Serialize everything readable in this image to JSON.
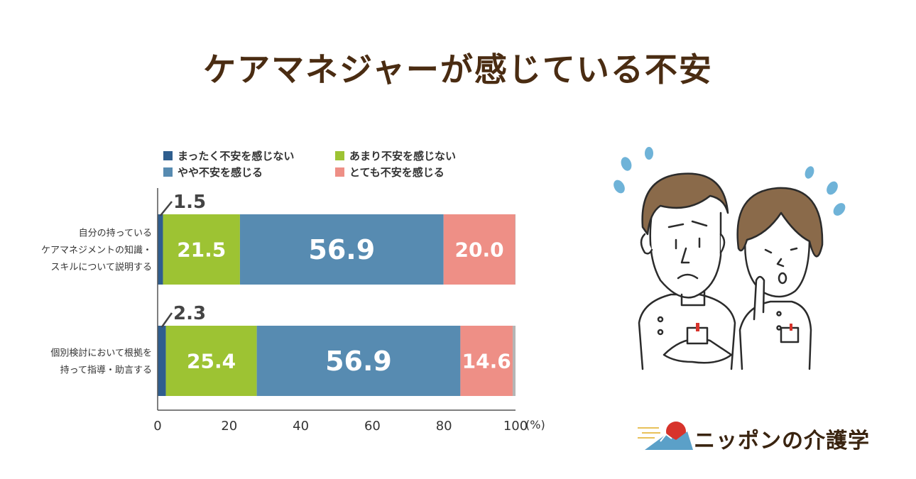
{
  "title": "ケアマネジャーが感じている不安",
  "brand": {
    "name": "ニッポンの介護学",
    "colors": {
      "title": "#4a2c12",
      "brand": "#3a2410",
      "sun": "#d7332b",
      "mountain": "#5ba0c8"
    }
  },
  "illustration": {
    "icon": "worried-care-workers-illustration"
  },
  "chart_data": {
    "type": "bar",
    "orientation": "horizontal",
    "stacked": true,
    "unit": "(%)",
    "xlim": [
      0,
      100
    ],
    "xticks": [
      "0",
      "20",
      "40",
      "60",
      "80",
      "100"
    ],
    "grid": false,
    "legend_position": "top",
    "categories": [
      "自分の持っている\nケアマネジメントの知識・\nスキルについて説明する",
      "個別検討において根拠を\n持って指導・助言する"
    ],
    "series": [
      {
        "name": "まったく不安を感じない",
        "color": "#2f5e8e",
        "values": [
          1.5,
          2.3
        ],
        "labels": [
          "1.5",
          "2.3"
        ]
      },
      {
        "name": "あまり不安を感じない",
        "color": "#9dc333",
        "values": [
          21.5,
          25.4
        ],
        "labels": [
          "21.5",
          "25.4"
        ]
      },
      {
        "name": "やや不安を感じる",
        "color": "#578bb1",
        "values": [
          56.9,
          56.9
        ],
        "labels": [
          "56.9",
          "56.9"
        ]
      },
      {
        "name": "とても不安を感じる",
        "color": "#ee8f86",
        "values": [
          20.0,
          14.6
        ],
        "labels": [
          "20.0",
          "14.6"
        ]
      }
    ],
    "remainder_color": "#b5b5b5"
  }
}
